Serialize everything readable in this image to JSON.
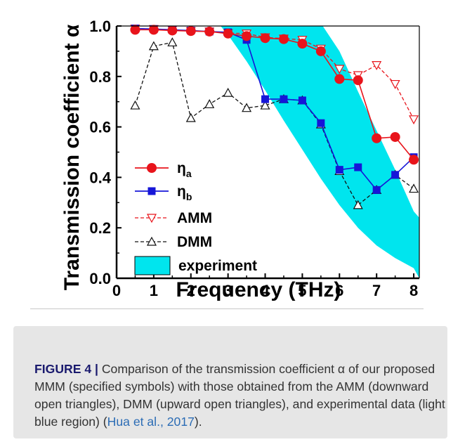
{
  "chart_data": {
    "type": "line",
    "xlabel": "Frequency (THz)",
    "ylabel": "Transmission coefficient α",
    "xlim": [
      0,
      8.15
    ],
    "ylim": [
      0,
      1.0
    ],
    "xticks": [
      "0",
      "1",
      "2",
      "3",
      "4",
      "5",
      "6",
      "7",
      "8"
    ],
    "yticks": [
      "0.0",
      "0.2",
      "0.4",
      "0.6",
      "0.8",
      "1.0"
    ],
    "legend_position": "left-center",
    "grid": false,
    "series": [
      {
        "name": "η",
        "subscript": "a",
        "color": "#e8141b",
        "marker": "circle",
        "linestyle": "solid",
        "x": [
          0.5,
          1.0,
          1.5,
          2.0,
          2.5,
          3.0,
          3.5,
          4.0,
          4.5,
          5.0,
          5.5,
          6.0,
          6.5,
          7.0,
          7.5,
          8.0
        ],
        "y": [
          0.985,
          0.985,
          0.982,
          0.98,
          0.978,
          0.97,
          0.96,
          0.952,
          0.948,
          0.93,
          0.9,
          0.79,
          0.785,
          0.555,
          0.56,
          0.47
        ]
      },
      {
        "name": "η",
        "subscript": "b",
        "color": "#1616d8",
        "marker": "square",
        "linestyle": "solid",
        "x": [
          0.5,
          1.0,
          1.5,
          2.0,
          2.5,
          3.0,
          3.5,
          4.0,
          4.5,
          5.0,
          5.5,
          6.0,
          6.5,
          7.0,
          7.5,
          8.0
        ],
        "y": [
          0.99,
          0.988,
          0.985,
          0.982,
          0.978,
          0.975,
          0.945,
          0.71,
          0.71,
          0.705,
          0.615,
          0.43,
          0.44,
          0.35,
          0.41,
          0.48
        ]
      },
      {
        "name": "AMM",
        "color": "#e8141b",
        "marker": "triangle-down",
        "linestyle": "dashed",
        "x": [
          0.5,
          1.0,
          1.5,
          2.0,
          2.5,
          3.0,
          3.5,
          4.0,
          4.5,
          5.0,
          5.5,
          6.0,
          6.5,
          7.0,
          7.5,
          8.0
        ],
        "y": [
          0.99,
          0.988,
          0.985,
          0.98,
          0.978,
          0.972,
          0.97,
          0.955,
          0.95,
          0.945,
          0.91,
          0.83,
          0.805,
          0.845,
          0.77,
          0.63
        ]
      },
      {
        "name": "DMM",
        "color": "#111111",
        "marker": "triangle-up",
        "linestyle": "dashed",
        "x": [
          0.5,
          1.0,
          1.5,
          2.0,
          2.5,
          3.0,
          3.5,
          4.0,
          4.5,
          5.0,
          5.5,
          6.0,
          6.5,
          7.0,
          7.5,
          8.0
        ],
        "y": [
          0.685,
          0.92,
          0.935,
          0.635,
          0.69,
          0.735,
          0.675,
          0.685,
          0.71,
          0.705,
          0.61,
          0.425,
          0.29,
          0.35,
          0.41,
          0.355
        ]
      }
    ],
    "band": {
      "name": "experiment",
      "color": "#00e5ee",
      "upper": [
        [
          2.75,
          1.0
        ],
        [
          5.55,
          1.0
        ],
        [
          6.0,
          0.9
        ],
        [
          6.5,
          0.74
        ],
        [
          7.0,
          0.585
        ],
        [
          7.5,
          0.43
        ],
        [
          8.0,
          0.265
        ],
        [
          8.15,
          0.24
        ]
      ],
      "lower": [
        [
          8.15,
          0.0
        ],
        [
          8.0,
          0.04
        ],
        [
          7.5,
          0.08
        ],
        [
          7.0,
          0.13
        ],
        [
          6.5,
          0.2
        ],
        [
          6.0,
          0.29
        ],
        [
          5.5,
          0.395
        ],
        [
          5.0,
          0.51
        ],
        [
          4.5,
          0.625
        ],
        [
          4.0,
          0.745
        ],
        [
          3.5,
          0.86
        ],
        [
          3.0,
          0.965
        ],
        [
          2.8,
          1.0
        ]
      ]
    }
  },
  "caption": {
    "label": "FIGURE 4 |",
    "text": " Comparison of the transmission coefficient α of our proposed MMM (specified symbols) with those obtained from the AMM (downward open triangles), DMM (upward open triangles), and experimental data (light blue region) (",
    "citation": "Hua et al., 2017",
    "end": ")."
  }
}
